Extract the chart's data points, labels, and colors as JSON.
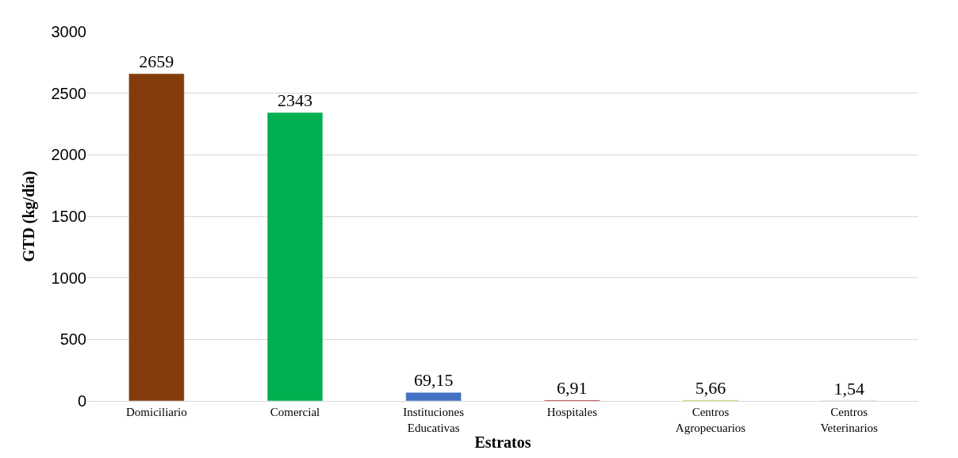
{
  "chart_data": {
    "type": "bar",
    "xlabel": "Estratos",
    "ylabel": "GTD (kg/día)",
    "categories": [
      "Domiciliario",
      "Comercial",
      "Instituciones\nEducativas",
      "Hospitales",
      "Centros\nAgropecuarios",
      "Centros\nVeterinarios"
    ],
    "values": [
      2659,
      2343,
      69.15,
      6.91,
      5.66,
      1.54
    ],
    "value_labels": [
      "2659",
      "2343",
      "69,15",
      "6,91",
      "5,66",
      "1,54"
    ],
    "colors": [
      "#843c0c",
      "#00b050",
      "#4472c4",
      "#c00000",
      "#c9c900",
      "#bf9000"
    ],
    "ylim": [
      0,
      3000
    ],
    "yticks": [
      0,
      500,
      1000,
      1500,
      2000,
      2500,
      3000
    ],
    "grid": "y"
  }
}
